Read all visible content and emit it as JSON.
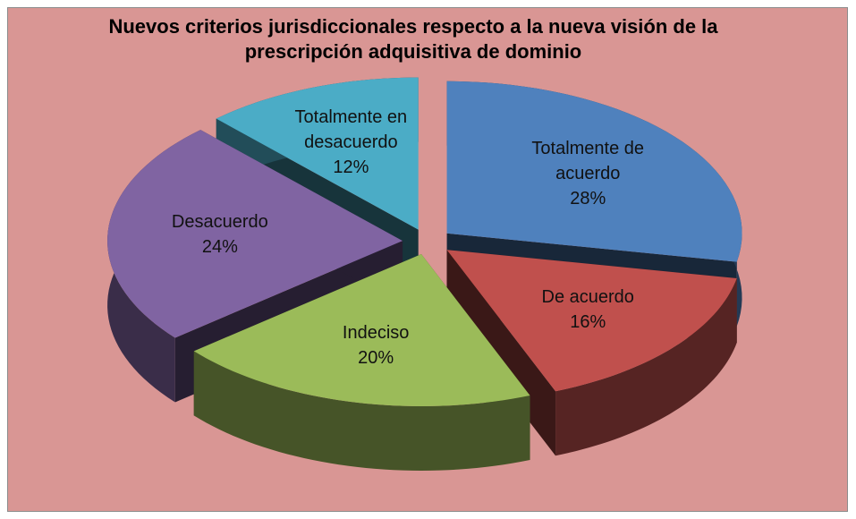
{
  "chart_data": {
    "type": "pie3d",
    "title": "Nuevos criterios jurisdiccionales respecto a la nueva visión de la prescripción adquisitiva de dominio",
    "categories": [
      "Totalmente de acuerdo",
      "De acuerdo",
      "Indeciso",
      "Desacuerdo",
      "Totalmente en desacuerdo"
    ],
    "values": [
      28,
      16,
      20,
      24,
      12
    ],
    "value_labels": [
      "28%",
      "16%",
      "20%",
      "24%",
      "12%"
    ],
    "colors": [
      "#4f81bd",
      "#c0504d",
      "#9bbb59",
      "#8064a2",
      "#4bacc6"
    ]
  }
}
